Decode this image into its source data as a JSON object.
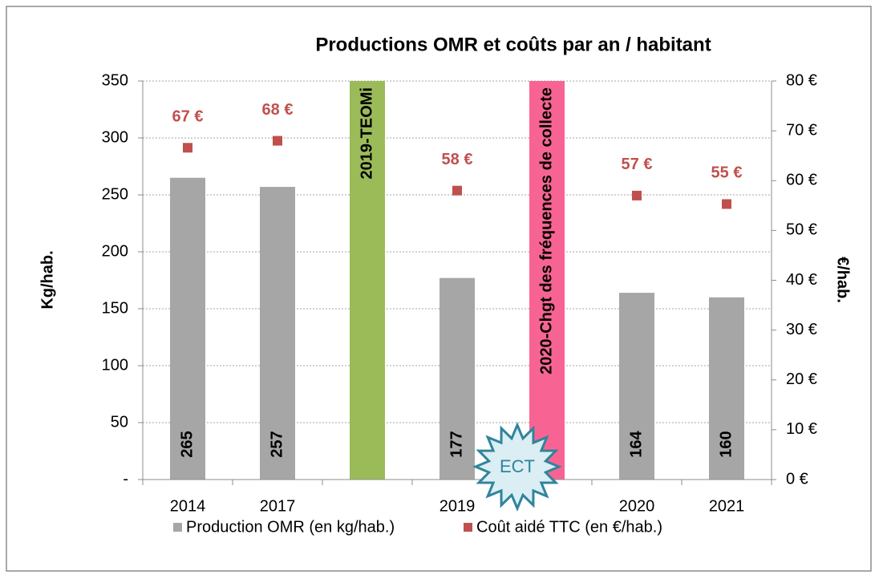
{
  "chart_data": {
    "type": "bar",
    "title": "Productions OMR et coûts par an / habitant",
    "categories": [
      "2014",
      "2017",
      null,
      "2019",
      null,
      "2020",
      "2021"
    ],
    "bands": [
      {
        "label": "2019-TEOMi",
        "color": "#9bbb59"
      },
      {
        "label": "2020-Chgt des fréquences de collecte",
        "color": "#f76493"
      }
    ],
    "series": [
      {
        "name": "Production OMR (en kg/hab.)",
        "color": "#a6a6a6",
        "axis": "y",
        "values": [
          265,
          257,
          null,
          177,
          null,
          164,
          160
        ]
      },
      {
        "name": "Coût aidé TTC (en €/hab.)",
        "color": "#c0504d",
        "axis": "y2",
        "values": [
          66.6,
          68,
          null,
          58,
          null,
          57,
          55.3
        ],
        "value_labels": [
          "67 €",
          "68 €",
          null,
          "58 €",
          null,
          "57 €",
          "55 €"
        ]
      }
    ],
    "ylabel": "Kg/hab.",
    "y2label": "€/hab.",
    "ylim": [
      0,
      350
    ],
    "yticks": [
      {
        "value": 0,
        "label": "-"
      },
      50,
      100,
      150,
      200,
      250,
      300,
      350
    ],
    "y2lim": [
      0,
      80
    ],
    "y2ticks": [
      {
        "value": 0,
        "label": "0 €"
      },
      {
        "value": 10,
        "label": "10 €"
      },
      {
        "value": 20,
        "label": "20 €"
      },
      {
        "value": 30,
        "label": "30 €"
      },
      {
        "value": 40,
        "label": "40 €"
      },
      {
        "value": 50,
        "label": "50 €"
      },
      {
        "value": 60,
        "label": "60 €"
      },
      {
        "value": 70,
        "label": "70 €"
      },
      {
        "value": 80,
        "label": "80 €"
      }
    ],
    "grid": true,
    "legend": "bottom",
    "annotation": "ECT"
  }
}
